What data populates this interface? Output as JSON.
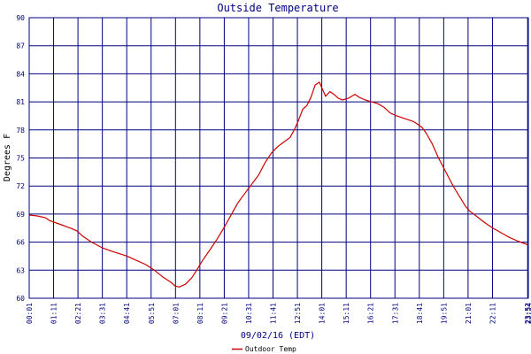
{
  "chart_data": {
    "type": "line",
    "title": "Outside Temperature",
    "xlabel": "09/02/16 (EDT)",
    "ylabel": "Degrees F",
    "ylim": [
      60,
      90
    ],
    "yticks": [
      60,
      63,
      66,
      69,
      72,
      75,
      78,
      81,
      84,
      87,
      90
    ],
    "xlim": [
      0.0167,
      23.9
    ],
    "x_unit": "hours since 00:00 EDT",
    "xtick_positions": [
      0.0167,
      1.1833,
      2.35,
      3.5167,
      4.6833,
      5.85,
      7.0167,
      8.1833,
      9.35,
      10.5167,
      11.6833,
      12.85,
      14.0167,
      15.1833,
      16.35,
      17.5167,
      18.6833,
      19.85,
      21.0167,
      22.1833,
      23.8667,
      23.9
    ],
    "xtick_labels": [
      "00:01",
      "01:11",
      "02:21",
      "03:31",
      "04:41",
      "05:51",
      "07:01",
      "08:11",
      "09:21",
      "10:31",
      "11:41",
      "12:51",
      "14:01",
      "15:11",
      "16:21",
      "17:31",
      "18:41",
      "19:51",
      "21:01",
      "22:11",
      "23:52",
      "23:54"
    ],
    "grid": true,
    "legend_placement": "bottom-left",
    "colors": {
      "series": "#cc0000",
      "grid": "#000080",
      "axes": "#000080",
      "text": "#000080"
    },
    "series": [
      {
        "name": "Outdoor Temp",
        "x": [
          0.0,
          0.4,
          0.8,
          1.0,
          1.5,
          2.0,
          2.3,
          2.6,
          3.0,
          3.5,
          4.0,
          4.3,
          4.7,
          5.1,
          5.6,
          6.0,
          6.4,
          6.8,
          7.0,
          7.2,
          7.5,
          7.8,
          8.0,
          8.3,
          8.7,
          9.0,
          9.3,
          9.7,
          10.0,
          10.3,
          10.6,
          11.0,
          11.3,
          11.6,
          11.9,
          12.2,
          12.5,
          12.7,
          12.9,
          13.1,
          13.3,
          13.5,
          13.7,
          13.9,
          14.0,
          14.2,
          14.4,
          14.6,
          14.8,
          15.0,
          15.3,
          15.6,
          15.8,
          16.1,
          16.4,
          16.7,
          17.0,
          17.3,
          17.6,
          18.0,
          18.4,
          18.8,
          19.0,
          19.3,
          19.6,
          20.0,
          20.3,
          20.6,
          20.9,
          21.1,
          21.4,
          21.8,
          22.2,
          22.6,
          23.0,
          23.4,
          23.9
        ],
        "y": [
          68.9,
          68.8,
          68.6,
          68.3,
          67.9,
          67.5,
          67.2,
          66.6,
          66.0,
          65.4,
          65.0,
          64.8,
          64.5,
          64.1,
          63.6,
          63.0,
          62.3,
          61.7,
          61.3,
          61.2,
          61.5,
          62.2,
          62.9,
          64.0,
          65.3,
          66.3,
          67.4,
          69.0,
          70.2,
          71.1,
          72.0,
          73.2,
          74.5,
          75.5,
          76.2,
          76.7,
          77.2,
          78.0,
          79.0,
          80.2,
          80.6,
          81.5,
          82.8,
          83.1,
          82.6,
          81.6,
          82.1,
          81.8,
          81.4,
          81.2,
          81.4,
          81.8,
          81.5,
          81.2,
          81.0,
          80.8,
          80.4,
          79.8,
          79.5,
          79.2,
          78.9,
          78.3,
          77.7,
          76.5,
          75.0,
          73.3,
          72.0,
          70.9,
          69.8,
          69.3,
          68.8,
          68.1,
          67.5,
          67.0,
          66.5,
          66.1,
          65.7
        ]
      }
    ]
  }
}
